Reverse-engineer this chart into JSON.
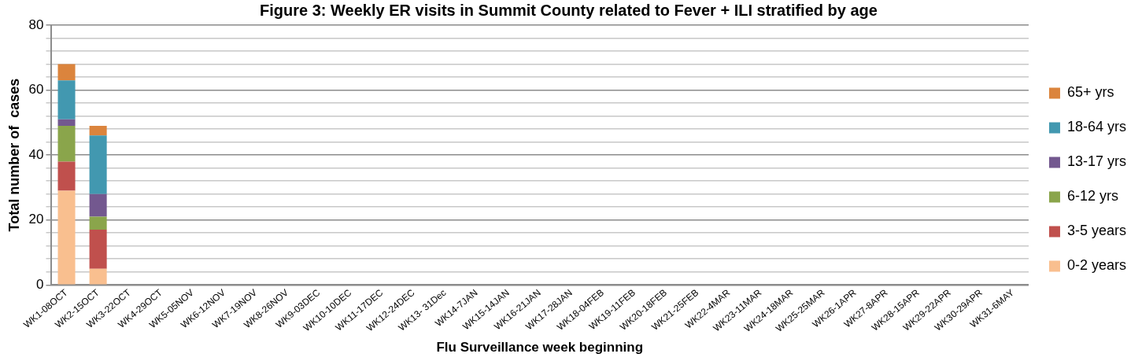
{
  "chart_data": {
    "type": "bar",
    "stacked": true,
    "title": "Figure 3: Weekly ER visits in Summit County related to Fever + ILI stratified by age",
    "xlabel": "Flu Surveillance week beginning",
    "ylabel": "Total number of  cases",
    "categories": [
      "WK1-08OCT",
      "WK2-15OCT",
      "WK3-22OCT",
      "WK4-29OCT",
      "WK5-05NOV",
      "WK6-12NOV",
      "WK7-19NOV",
      "WK8-26NOV",
      "WK9-03DEC",
      "WK10-10DEC",
      "WK11-17DEC",
      "WK12-24DEC",
      "WK13- 31Dec",
      "WK14-7JAN",
      "WK15-14JAN",
      "WK16-21JAN",
      "WK17-28JAN",
      "WK18-04FEB",
      "WK19-11FEB",
      "WK20-18FEB",
      "WK21-25FEB",
      "WK22-4MAR",
      "WK23-11MAR",
      "WK24-18MAR",
      "WK25-25MAR",
      "WK26-1APR",
      "WK27-8APR",
      "WK28-15APR",
      "WK29-22APR",
      "WK30-29APR",
      "WK31-6MAY"
    ],
    "series": [
      {
        "name": "0-2 years",
        "color": "#f9bf8f",
        "values": [
          29,
          5,
          null,
          null,
          null,
          null,
          null,
          null,
          null,
          null,
          null,
          null,
          null,
          null,
          null,
          null,
          null,
          null,
          null,
          null,
          null,
          null,
          null,
          null,
          null,
          null,
          null,
          null,
          null,
          null,
          null
        ]
      },
      {
        "name": "3-5 years",
        "color": "#c0504d",
        "values": [
          9,
          12,
          null,
          null,
          null,
          null,
          null,
          null,
          null,
          null,
          null,
          null,
          null,
          null,
          null,
          null,
          null,
          null,
          null,
          null,
          null,
          null,
          null,
          null,
          null,
          null,
          null,
          null,
          null,
          null,
          null
        ]
      },
      {
        "name": "6-12 yrs",
        "color": "#8aa54b",
        "values": [
          11,
          4,
          null,
          null,
          null,
          null,
          null,
          null,
          null,
          null,
          null,
          null,
          null,
          null,
          null,
          null,
          null,
          null,
          null,
          null,
          null,
          null,
          null,
          null,
          null,
          null,
          null,
          null,
          null,
          null,
          null
        ]
      },
      {
        "name": "13-17 yrs",
        "color": "#73588f",
        "values": [
          2,
          7,
          null,
          null,
          null,
          null,
          null,
          null,
          null,
          null,
          null,
          null,
          null,
          null,
          null,
          null,
          null,
          null,
          null,
          null,
          null,
          null,
          null,
          null,
          null,
          null,
          null,
          null,
          null,
          null,
          null
        ]
      },
      {
        "name": "18-64 yrs",
        "color": "#4298b0",
        "values": [
          12,
          18,
          null,
          null,
          null,
          null,
          null,
          null,
          null,
          null,
          null,
          null,
          null,
          null,
          null,
          null,
          null,
          null,
          null,
          null,
          null,
          null,
          null,
          null,
          null,
          null,
          null,
          null,
          null,
          null,
          null
        ]
      },
      {
        "name": "65+ yrs",
        "color": "#db843d",
        "values": [
          5,
          3,
          null,
          null,
          null,
          null,
          null,
          null,
          null,
          null,
          null,
          null,
          null,
          null,
          null,
          null,
          null,
          null,
          null,
          null,
          null,
          null,
          null,
          null,
          null,
          null,
          null,
          null,
          null,
          null,
          null
        ]
      }
    ],
    "ylim": [
      0,
      80
    ],
    "yticks": [
      0,
      {
        "value": 4,
        "label": null
      },
      {
        "value": 8,
        "label": null
      },
      {
        "value": 12,
        "label": null
      },
      {
        "value": 16,
        "label": null
      },
      20,
      {
        "value": 24,
        "label": null
      },
      {
        "value": 28,
        "label": null
      },
      {
        "value": 32,
        "label": null
      },
      {
        "value": 36,
        "label": null
      },
      40,
      {
        "value": 44,
        "label": null
      },
      {
        "value": 48,
        "label": null
      },
      {
        "value": 52,
        "label": null
      },
      {
        "value": 56,
        "label": null
      },
      60,
      {
        "value": 64,
        "label": null
      },
      {
        "value": 68,
        "label": null
      },
      {
        "value": 72,
        "label": null
      },
      {
        "value": 76,
        "label": null
      },
      80
    ],
    "grid": "y",
    "legend": "right"
  }
}
